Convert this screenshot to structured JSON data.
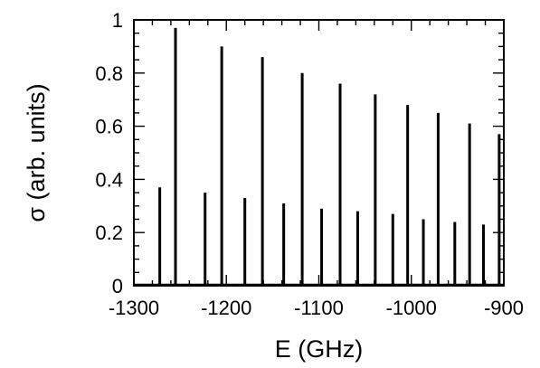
{
  "chart_data": {
    "type": "bar",
    "title": "",
    "xlabel": "E (GHz)",
    "ylabel": "σ (arb. units)",
    "xlim": [
      -1300,
      -900
    ],
    "ylim": [
      0,
      1
    ],
    "x_ticks": [
      -1300,
      -1200,
      -1100,
      -1000,
      -900
    ],
    "x_tick_labels": [
      "-1300",
      "-1200",
      "-1100",
      "-1000",
      "-900"
    ],
    "y_ticks": [
      0,
      0.2,
      0.4,
      0.6,
      0.8,
      1
    ],
    "y_tick_labels": [
      "0",
      "0.2",
      "0.4",
      "0.6",
      "0.8",
      "1"
    ],
    "grid": false,
    "series": [
      {
        "x": [
          -1272,
          -1255,
          -1223,
          -1205,
          -1180,
          -1161,
          -1138,
          -1118,
          -1097,
          -1077,
          -1058,
          -1039,
          -1020,
          -1004,
          -987,
          -971,
          -953,
          -937,
          -922,
          -905
        ],
        "values": [
          0.37,
          0.97,
          0.35,
          0.9,
          0.33,
          0.86,
          0.31,
          0.8,
          0.29,
          0.76,
          0.28,
          0.72,
          0.27,
          0.68,
          0.25,
          0.65,
          0.24,
          0.61,
          0.23,
          0.57
        ]
      }
    ],
    "colors": {
      "axis": "#000000",
      "peaks": "#000000"
    }
  }
}
